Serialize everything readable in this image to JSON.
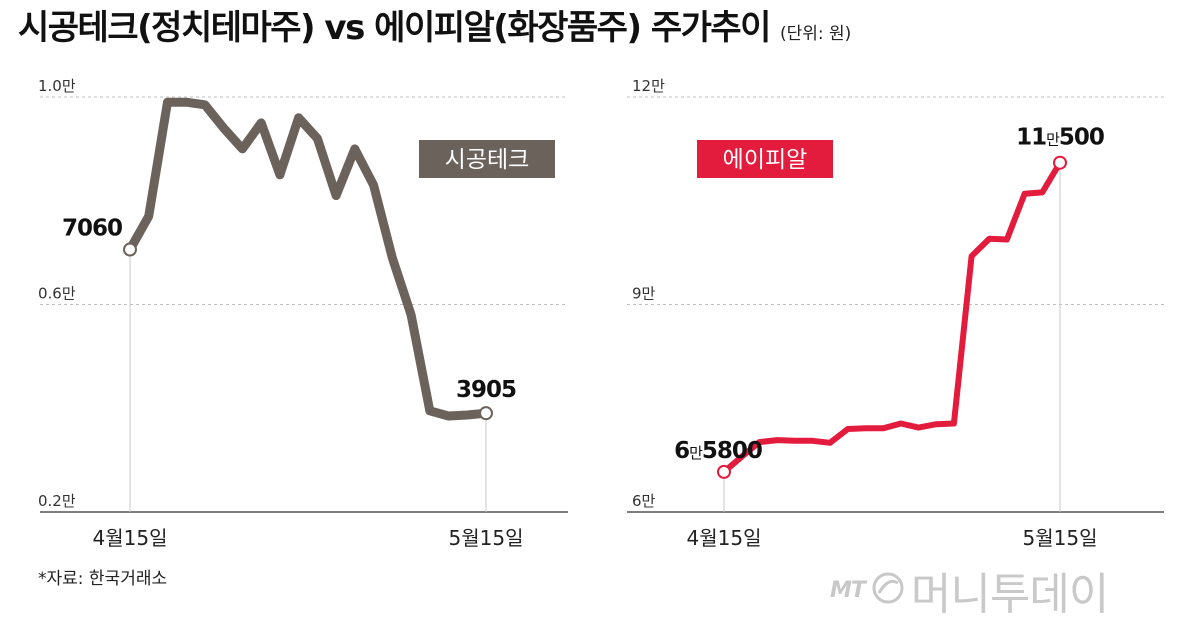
{
  "title": {
    "main": "시공테크(정치테마주) vs 에이피알(화장품주) 주가추이",
    "unit": "(단위: 원)"
  },
  "source": "*자료: 한국거래소",
  "logo": {
    "mt": "MT",
    "brand": "머니투데이"
  },
  "colors": {
    "left_line": "#6b625c",
    "right_line": "#e31b3c",
    "grid": "#bfbfbf",
    "axis": "#555555"
  },
  "chart_data": [
    {
      "type": "line",
      "series": [
        {
          "name": "시공테크",
          "values": [
            7060,
            7700,
            9900,
            9900,
            9850,
            9400,
            9000,
            9500,
            8500,
            9600,
            9200,
            8100,
            9000,
            8300,
            6900,
            5800,
            3950,
            3850,
            3870,
            3905
          ]
        }
      ],
      "ylim": [
        2000,
        10000
      ],
      "yticks": [
        {
          "value": 2000,
          "label": "0.2만"
        },
        {
          "value": 6000,
          "label": "0.6만"
        },
        {
          "value": 10000,
          "label": "1.0만"
        }
      ],
      "xticks": [
        {
          "index": 0,
          "label": "4월15일"
        },
        {
          "index": 19,
          "label": "5월15일"
        }
      ],
      "legend_label": "시공테크",
      "annotations": [
        {
          "index": 0,
          "prefix": "",
          "small": "",
          "suffix": "7060"
        },
        {
          "index": 19,
          "prefix": "",
          "small": "",
          "suffix": "3905"
        }
      ],
      "grid": true
    },
    {
      "type": "line",
      "series": [
        {
          "name": "에이피알",
          "values": [
            65800,
            68000,
            70100,
            70400,
            70300,
            70300,
            70000,
            72000,
            72100,
            72100,
            72800,
            72200,
            72700,
            72800,
            97000,
            99500,
            99400,
            106000,
            106200,
            110500
          ]
        }
      ],
      "ylim": [
        60000,
        120000
      ],
      "yticks": [
        {
          "value": 60000,
          "label": "6만"
        },
        {
          "value": 90000,
          "label": "9만"
        },
        {
          "value": 120000,
          "label": "12만"
        }
      ],
      "xticks": [
        {
          "index": 0,
          "label": "4월15일"
        },
        {
          "index": 19,
          "label": "5월15일"
        }
      ],
      "legend_label": "에이피알",
      "annotations": [
        {
          "index": 0,
          "prefix": "6",
          "small": "만",
          "suffix": "5800"
        },
        {
          "index": 19,
          "prefix": "11",
          "small": "만",
          "suffix": "500"
        }
      ],
      "grid": true
    }
  ]
}
